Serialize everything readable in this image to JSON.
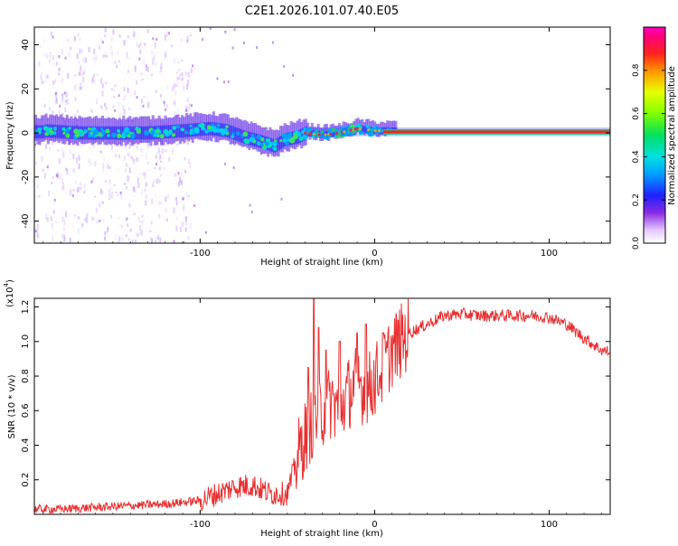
{
  "chart_data": [
    {
      "type": "heatmap",
      "title": "C2E1.2026.101.07.40.E05",
      "xlabel": "Height of straight line (km)",
      "ylabel": "Frequency (Hz)",
      "xlim": [
        -195,
        135
      ],
      "ylim": [
        -50,
        48
      ],
      "xticks": [
        -100,
        0,
        100
      ],
      "xtick_labels": [
        "-100",
        "0",
        "100"
      ],
      "yticks": [
        -40,
        -20,
        0,
        20,
        40
      ],
      "ytick_labels": [
        "-40",
        "-20",
        "0",
        "20",
        "40"
      ],
      "colorbar": {
        "label": "Normalized spectral amplitude",
        "range": [
          0,
          1
        ],
        "ticks": [
          0.0,
          0.2,
          0.4,
          0.6,
          0.8
        ],
        "tick_labels": [
          "0.0",
          "0.2",
          "0.4",
          "0.6",
          "0.8"
        ]
      },
      "ridge": {
        "description_points": [
          [
            -190,
            1
          ],
          [
            -170,
            0
          ],
          [
            -150,
            0
          ],
          [
            -130,
            0
          ],
          [
            -110,
            1
          ],
          [
            -95,
            2
          ],
          [
            -85,
            1
          ],
          [
            -75,
            -2
          ],
          [
            -65,
            -4
          ],
          [
            -58,
            -6
          ],
          [
            -52,
            -3
          ],
          [
            -45,
            -2
          ],
          [
            -40,
            0
          ],
          [
            -30,
            -1
          ],
          [
            -20,
            0
          ],
          [
            -10,
            2
          ],
          [
            0,
            1
          ],
          [
            10,
            1
          ],
          [
            30,
            0.5
          ],
          [
            135,
            0.5
          ]
        ]
      }
    },
    {
      "type": "line",
      "xlabel": "Height of straight line (km)",
      "ylabel": "SNR (10 * v/v)",
      "y_scale_label_base": "(x10",
      "y_scale_label_exp": "4",
      "y_scale_label_close": ")",
      "xlim": [
        -195,
        135
      ],
      "ylim": [
        0,
        1.25
      ],
      "xticks": [
        -100,
        0,
        100
      ],
      "xtick_labels": [
        "-100",
        "0",
        "100"
      ],
      "yticks": [
        0.2,
        0.4,
        0.6,
        0.8,
        1.0,
        1.2
      ],
      "ytick_labels": [
        "0.2",
        "0.4",
        "0.6",
        "0.8",
        "1.0",
        "1.2"
      ],
      "series": [
        {
          "name": "SNR",
          "color": "#e83030",
          "x": [
            -195,
            -180,
            -160,
            -140,
            -120,
            -100,
            -90,
            -80,
            -70,
            -60,
            -50,
            -45,
            -40,
            -35,
            -30,
            -25,
            -20,
            -15,
            -10,
            -5,
            0,
            5,
            10,
            20,
            30,
            40,
            50,
            60,
            70,
            80,
            90,
            100,
            110,
            120,
            130,
            135
          ],
          "values": [
            0.03,
            0.03,
            0.04,
            0.05,
            0.06,
            0.08,
            0.12,
            0.16,
            0.17,
            0.12,
            0.12,
            0.3,
            0.45,
            0.55,
            0.6,
            0.65,
            0.62,
            0.7,
            0.78,
            0.7,
            0.78,
            0.85,
            0.95,
            1.05,
            1.1,
            1.15,
            1.16,
            1.15,
            1.15,
            1.15,
            1.15,
            1.14,
            1.1,
            1.02,
            0.95,
            0.94
          ]
        }
      ],
      "spikes": [
        {
          "x": -35,
          "value": 1.25
        },
        {
          "x": -32,
          "value": 1.08
        },
        {
          "x": -38,
          "value": 0.85
        },
        {
          "x": -28,
          "value": 0.95
        },
        {
          "x": -20,
          "value": 1.0
        },
        {
          "x": -10,
          "value": 1.05
        },
        {
          "x": -5,
          "value": 1.1
        },
        {
          "x": 5,
          "value": 1.05
        }
      ]
    }
  ],
  "colors": {
    "line": "#e83030",
    "ridge_core": "#ff2020",
    "ridge_outer": "#7a1fff",
    "noise": "#c49aff"
  }
}
